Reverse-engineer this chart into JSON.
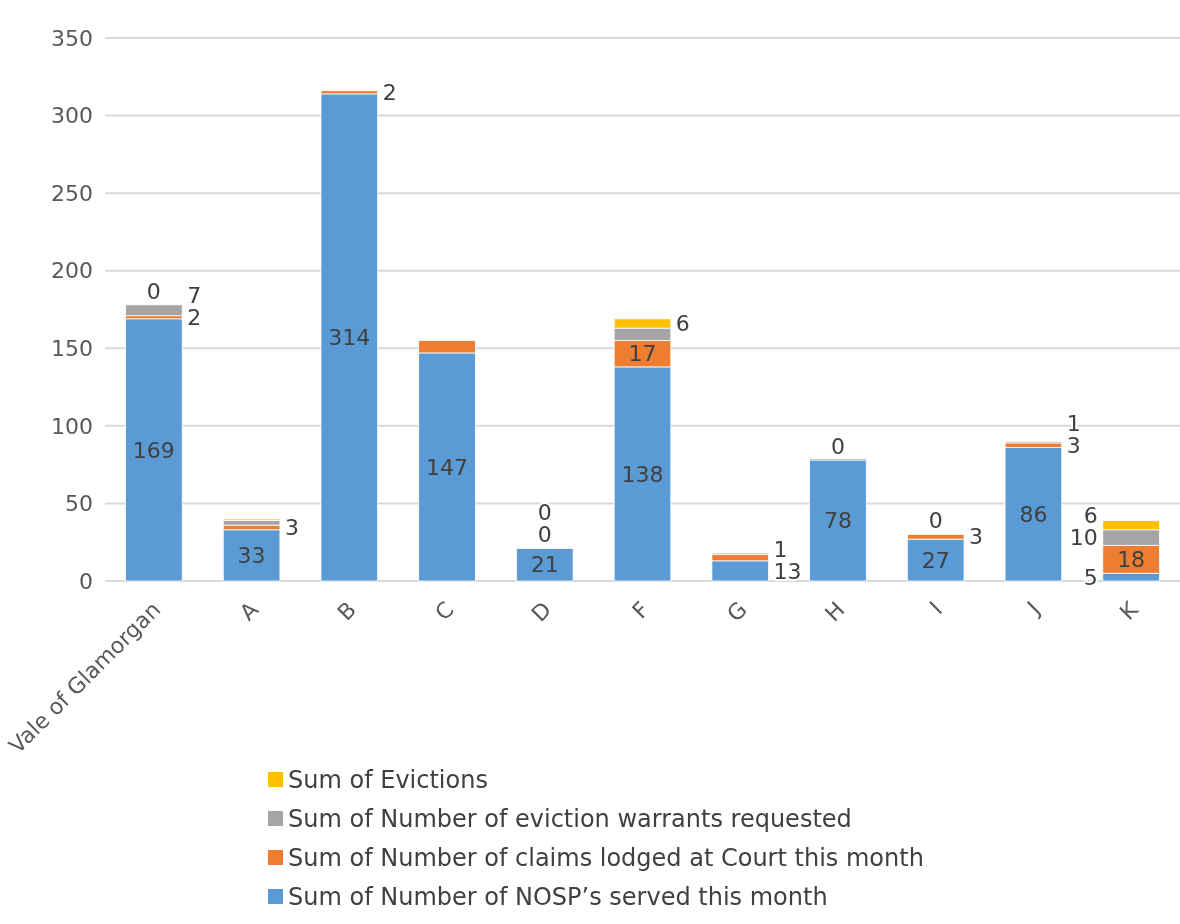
{
  "chart_data": {
    "type": "bar",
    "stacked": true,
    "categories": [
      "Vale of Glamorgan",
      "A",
      "B",
      "C",
      "D",
      "F",
      "G",
      "H",
      "I",
      "J",
      "K"
    ],
    "series": [
      {
        "name": "Sum of Number of NOSP’s served this month",
        "color": "#5b9bd5",
        "values": [
          169,
          33,
          314,
          147,
          21,
          138,
          13,
          78,
          27,
          86,
          5
        ],
        "value_labels": [
          "169",
          "33",
          "314",
          "147",
          "21",
          "138",
          "13",
          "78",
          "27",
          "86",
          "5"
        ]
      },
      {
        "name": "Sum of Number of claims lodged at Court this month",
        "color": "#ed7d31",
        "values": [
          2,
          3,
          2,
          8,
          0,
          17,
          4,
          0,
          3,
          3,
          18
        ],
        "value_labels": [
          "2",
          "3",
          "2",
          null,
          "0",
          "17",
          null,
          "0",
          "3",
          "3",
          "18"
        ]
      },
      {
        "name": "Sum of Number of eviction warrants requested",
        "color": "#a5a5a5",
        "values": [
          7,
          3,
          0,
          0,
          0,
          8,
          1,
          1,
          0,
          1,
          10
        ],
        "value_labels": [
          "7",
          null,
          null,
          null,
          "0",
          null,
          "1",
          null,
          "0",
          "1",
          "10"
        ]
      },
      {
        "name": "Sum of Evictions",
        "color": "#ffc000",
        "values": [
          0,
          1,
          0,
          0,
          0,
          6,
          0,
          0,
          0,
          0,
          6
        ],
        "value_labels": [
          "0",
          null,
          null,
          null,
          null,
          "6",
          null,
          null,
          null,
          null,
          "6"
        ]
      }
    ],
    "ylim": [
      0,
      350
    ],
    "yticks": [
      0,
      50,
      100,
      150,
      200,
      250,
      300,
      350
    ],
    "grid": "y",
    "legend": "bottom"
  }
}
